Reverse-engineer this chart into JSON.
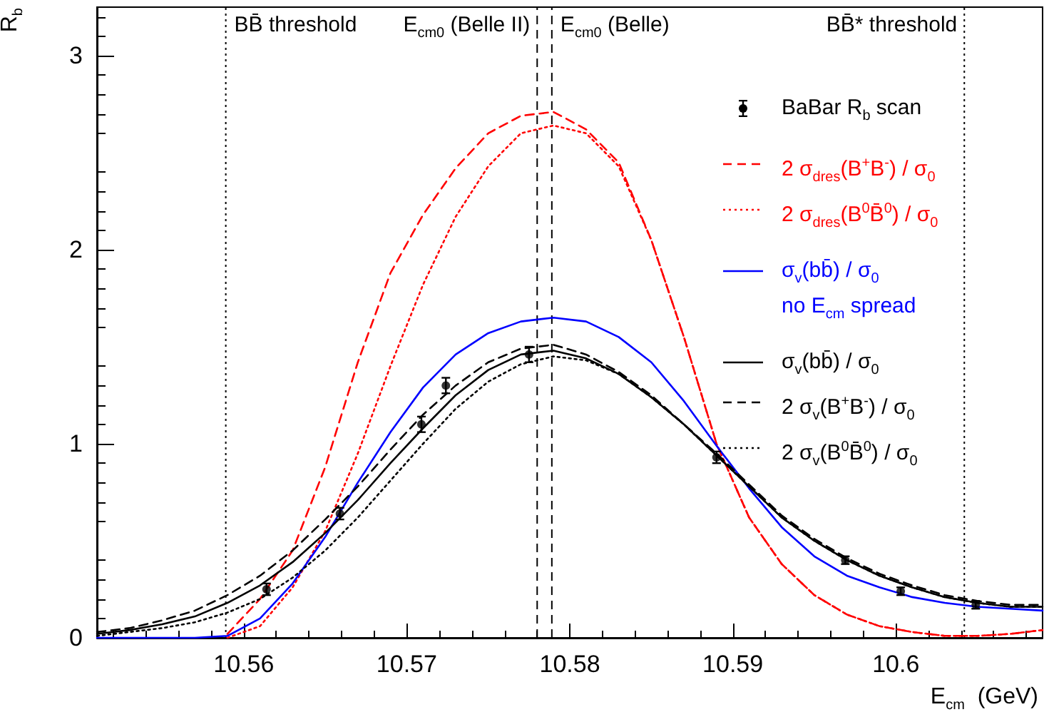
{
  "chart_data": {
    "type": "line",
    "xlabel": "E$_{cm}$  (GeV)",
    "ylabel": "R$_{b}$",
    "xlim": [
      10.551,
      10.609
    ],
    "xticks": [
      10.56,
      10.57,
      10.58,
      10.59,
      {
        "value": 10.6,
        "label": "10.6"
      }
    ],
    "ylim": [
      0,
      3.25
    ],
    "yticks": [
      0,
      1,
      2,
      3
    ],
    "grid": false,
    "legend": "top right",
    "x": [
      10.551,
      10.553,
      10.555,
      10.557,
      10.559,
      10.561,
      10.563,
      10.565,
      10.567,
      10.569,
      10.571,
      10.573,
      10.575,
      10.577,
      10.579,
      10.581,
      10.583,
      10.585,
      10.587,
      10.589,
      10.591,
      10.593,
      10.595,
      10.597,
      10.599,
      10.601,
      10.603,
      10.605,
      10.607,
      10.609
    ],
    "series": [
      {
        "name": "BaBar R$_{b}$ scan",
        "type": "scatter",
        "marker": "circle",
        "color": "#000000",
        "x": [
          10.5614,
          10.5659,
          10.5709,
          10.5724,
          10.5775,
          10.589,
          10.5969,
          10.6003,
          10.6049
        ],
        "values": [
          0.25,
          0.64,
          1.1,
          1.3,
          1.46,
          0.93,
          0.4,
          0.24,
          0.17
        ],
        "errors": [
          0.03,
          0.03,
          0.04,
          0.04,
          0.04,
          0.03,
          0.02,
          0.02,
          0.02
        ]
      },
      {
        "name": "2 σ$_{dres}$(B$^{+}$B$^{-}$) / σ$_{0}$",
        "color": "#ff0000",
        "line_style": "dashed",
        "values": [
          null,
          null,
          null,
          null,
          0.02,
          0.2,
          0.45,
          0.88,
          1.42,
          1.88,
          2.18,
          2.42,
          2.6,
          2.69,
          2.71,
          2.62,
          2.45,
          2.05,
          1.55,
          1.0,
          0.62,
          0.38,
          0.22,
          0.12,
          0.06,
          0.03,
          0.01,
          0.01,
          0.02,
          0.04
        ]
      },
      {
        "name": "2 σ$_{dres}$(B$^{0}$B̄$^{0}$) / σ$_{0}$",
        "color": "#ff0000",
        "line_style": "dotted",
        "values": [
          null,
          null,
          null,
          null,
          0,
          0.06,
          0.26,
          0.55,
          0.95,
          1.4,
          1.82,
          2.17,
          2.43,
          2.6,
          2.64,
          2.6,
          2.43,
          2.05,
          1.55,
          1.0,
          0.62,
          0.38,
          0.22,
          0.12,
          0.06,
          0.03,
          0.01,
          0.01,
          0.02,
          0.04
        ]
      },
      {
        "name": "σ$_{v}$(bb̄) / σ$_{0}$\nno E$_{cm}$ spread",
        "color": "#0000ff",
        "line_style": "solid",
        "values": [
          0,
          0,
          0,
          0,
          0.01,
          0.1,
          0.28,
          0.52,
          0.8,
          1.06,
          1.29,
          1.46,
          1.57,
          1.63,
          1.65,
          1.63,
          1.55,
          1.42,
          1.22,
          0.99,
          0.77,
          0.57,
          0.42,
          0.32,
          0.26,
          0.21,
          0.18,
          0.16,
          0.15,
          0.14
        ]
      },
      {
        "name": "σ$_{v}$(bb̄) / σ$_{0}$",
        "color": "#000000",
        "line_style": "solid",
        "values": [
          0.02,
          0.04,
          0.07,
          0.11,
          0.18,
          0.27,
          0.39,
          0.54,
          0.71,
          0.9,
          1.08,
          1.25,
          1.38,
          1.46,
          1.48,
          1.44,
          1.36,
          1.24,
          1.1,
          0.94,
          0.78,
          0.62,
          0.5,
          0.4,
          0.32,
          0.26,
          0.21,
          0.18,
          0.16,
          0.16
        ]
      },
      {
        "name": "2 σ$_{v}$(B$^{+}$B$^{-}$) / σ$_{0}$",
        "color": "#000000",
        "line_style": "dashed",
        "values": [
          0.03,
          0.05,
          0.09,
          0.14,
          0.22,
          0.32,
          0.45,
          0.61,
          0.78,
          0.97,
          1.15,
          1.3,
          1.42,
          1.49,
          1.51,
          1.46,
          1.37,
          1.25,
          1.1,
          0.95,
          0.79,
          0.63,
          0.51,
          0.41,
          0.33,
          0.27,
          0.22,
          0.19,
          0.17,
          0.17
        ]
      },
      {
        "name": "2 σ$_{v}$(B$^{0}$B̄$^{0}$) / σ$_{0}$",
        "color": "#000000",
        "line_style": "dotted",
        "values": [
          0.01,
          0.03,
          0.05,
          0.08,
          0.13,
          0.2,
          0.31,
          0.45,
          0.62,
          0.81,
          1.0,
          1.18,
          1.32,
          1.41,
          1.45,
          1.43,
          1.36,
          1.24,
          1.1,
          0.94,
          0.78,
          0.62,
          0.5,
          0.4,
          0.32,
          0.26,
          0.21,
          0.18,
          0.16,
          0.16
        ]
      }
    ],
    "ref_lines": [
      {
        "axis": "x",
        "value": 10.5589,
        "label": "BB̄ threshold",
        "line_style": "dotted",
        "color": "#000000"
      },
      {
        "axis": "x",
        "value": 10.578,
        "label": "E$_{cm0}$ (Belle II)",
        "line_style": "dashed",
        "color": "#000000"
      },
      {
        "axis": "x",
        "value": 10.5789,
        "label": "E$_{cm0}$ (Belle)",
        "line_style": "dashed",
        "color": "#000000"
      },
      {
        "axis": "x",
        "value": 10.6042,
        "label": "BB̄* threshold",
        "line_style": "dotted",
        "color": "#000000"
      }
    ]
  }
}
